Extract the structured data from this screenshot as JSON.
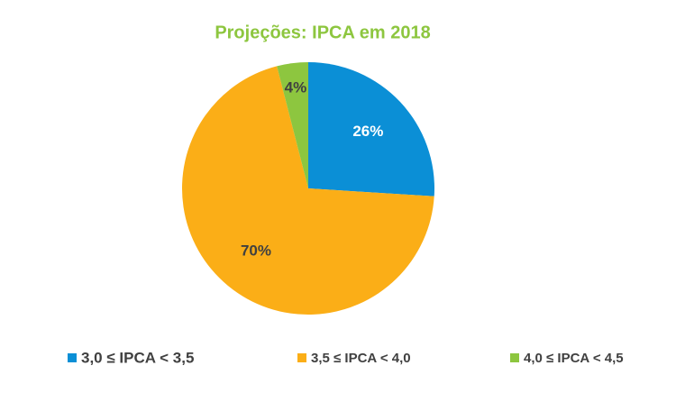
{
  "chart_data": {
    "type": "pie",
    "title": "Projeções: IPCA em 2018",
    "categories": [
      "3,0 ≤ IPCA < 3,5",
      "3,5 ≤ IPCA < 4,0",
      "4,0 ≤ IPCA < 4,5"
    ],
    "values": [
      26,
      70,
      4
    ],
    "value_labels": [
      "26%",
      "70%",
      "4%"
    ],
    "colors": [
      "#0b8fd6",
      "#fbae17",
      "#8dc63f"
    ],
    "title_color": "#8dc63f",
    "legend": "bottom"
  }
}
